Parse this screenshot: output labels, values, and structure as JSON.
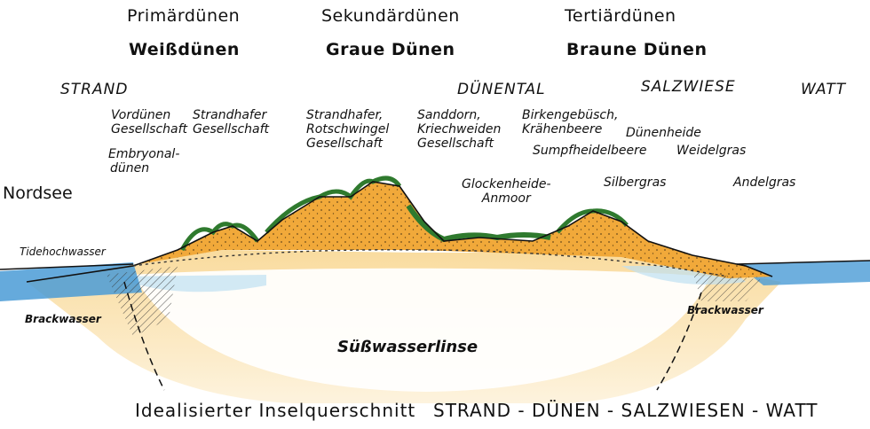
{
  "headers": {
    "primary_dunes": "Primärdünen",
    "secondary_dunes": "Sekundärdünen",
    "tertiary_dunes": "Tertiärdünen",
    "white_dunes": "Weißdünen",
    "grey_dunes": "Graue Dünen",
    "brown_dunes": "Braune Dünen"
  },
  "zones": {
    "beach": "STRAND",
    "dune_valley": "DÜNENTAL",
    "salt_meadow": "SALZWIESE",
    "mudflat": "WATT"
  },
  "vegetation": {
    "foredunes": [
      "Vordünen",
      "Gesellschaft"
    ],
    "embryonic_dunes": [
      "Embryonal-",
      "dünen"
    ],
    "marram_society": [
      "Strandhafer",
      "Gesellschaft"
    ],
    "marram_fescue": [
      "Strandhafer,",
      "Rotschwingel",
      "Gesellschaft"
    ],
    "buckthorn_willow": [
      "Sanddorn,",
      "Kriechweiden",
      "Gesellschaft"
    ],
    "birch_crowberry": [
      "Birkengebüsch,",
      "Krähenbeere"
    ],
    "bog_bilberry": "Sumpfheidelbeere",
    "dune_heath": "Dünenheide",
    "rye_grass": "Weidelgras",
    "cross_leaved_heath": [
      "Glockenheide-",
      "Anmoor"
    ],
    "grey_hair_grass": "Silbergras",
    "sea_poa": "Andelgras"
  },
  "side_labels": {
    "north_sea": "Nordsee",
    "high_tide": "Tidehochwasser",
    "brackish_left": "Brackwasser",
    "brackish_right": "Brackwasser",
    "freshwater_lens": "Süßwasserlinse"
  },
  "caption": {
    "title": "Idealisierter Inselquerschnitt",
    "sequence": "STRAND - DÜNEN - SALZWIESEN - WATT"
  },
  "colors": {
    "sea": "#4a9bd6",
    "sand": "#f1a93a",
    "sand_light": "#f7cf73",
    "vegetation": "#2f7a2e",
    "freshwater": "#bfe0f2",
    "ink": "#111111"
  }
}
